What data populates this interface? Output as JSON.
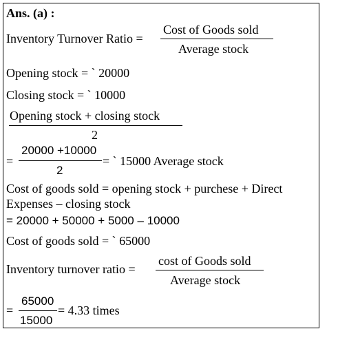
{
  "answer_label": "Ans. (a) :",
  "formula_1": {
    "lhs": "Inventory Turnover Ratio =",
    "numerator": "Cost of  Goods sold",
    "denominator": "Average stock"
  },
  "opening_stock": "Opening stock = ` 20000",
  "closing_stock": "Closing stock = ` 10000",
  "average_formula": {
    "numerator": "Opening stock + closing  stock",
    "denominator": "2"
  },
  "average_calc": {
    "prefix": "=",
    "numerator": "20000 +10000",
    "denominator": "2",
    "result": "= ` 15000 Average stock"
  },
  "cogs_formula": [
    "Cost of goods sold = opening stock + purchese + Direct",
    "Expenses – closing stock"
  ],
  "cogs_calc": "= 20000 + 50000 + 5000 – 10000",
  "cogs_result": "Cost of goods sold = ` 65000",
  "formula_2": {
    "lhs": "Inventory turnover ratio =",
    "numerator": "cost of  Goods sold",
    "denominator": "Average stock"
  },
  "final_calc": {
    "prefix": "=",
    "numerator": "65000",
    "denominator": "15000",
    "result": "= 4.33 times"
  }
}
